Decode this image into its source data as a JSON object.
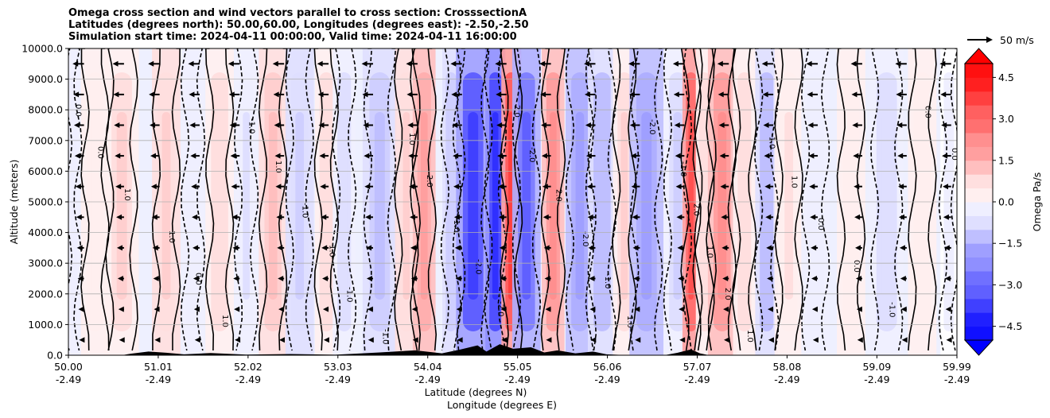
{
  "chart_data": {
    "type": "heatmap",
    "title_lines": [
      "Omega cross section and wind vectors parallel to cross section: CrosssectionA",
      "Latitudes (degrees north): 50.00,60.00, Longitudes (degrees east): -2.50,-2.50",
      "Simulation start time: 2024-04-11 00:00:00, Valid time: 2024-04-11 16:00:00"
    ],
    "ylabel": "Altitude (meters)",
    "xlabel_lines": [
      "Latitude (degrees N)",
      "Longitude (degrees E)"
    ],
    "ylim": [
      0,
      10000
    ],
    "xlim": [
      50.0,
      59.99
    ],
    "y_ticks": [
      "0.0",
      "1000.0",
      "2000.0",
      "3000.0",
      "4000.0",
      "5000.0",
      "6000.0",
      "7000.0",
      "8000.0",
      "9000.0",
      "10000.0"
    ],
    "y_tick_values": [
      0,
      1000,
      2000,
      3000,
      4000,
      5000,
      6000,
      7000,
      8000,
      9000,
      10000
    ],
    "x_ticks_lat": [
      "50.00",
      "51.01",
      "52.02",
      "53.03",
      "54.04",
      "55.05",
      "56.06",
      "57.07",
      "58.08",
      "59.09",
      "59.99"
    ],
    "x_ticks_lon": [
      "-2.49",
      "-2.49",
      "-2.49",
      "-2.49",
      "-2.49",
      "-2.49",
      "-2.49",
      "-2.49",
      "-2.49",
      "-2.49",
      "-2.49"
    ],
    "x_tick_values": [
      50.0,
      51.01,
      52.02,
      53.03,
      54.04,
      55.05,
      56.06,
      57.07,
      58.08,
      59.09,
      59.99
    ],
    "grid": true,
    "colorbar": {
      "label": "Omega Pa/s",
      "ticks": [
        "4.5",
        "3.0",
        "1.5",
        "0.0",
        "−1.5",
        "−3.0",
        "−4.5"
      ],
      "tick_values": [
        4.5,
        3.0,
        1.5,
        0.0,
        -1.5,
        -3.0,
        -4.5
      ],
      "vmin": -5.0,
      "vmax": 5.0,
      "extend": "both",
      "high_color": "#ff0000",
      "zero_color": "#ffffff",
      "low_color": "#0000ff"
    },
    "quiver_key": {
      "label": "50 m/s",
      "speed": 50
    },
    "contour_labels": [
      "0.0",
      "1.0",
      "-1.0",
      "2.0",
      "-2.0"
    ],
    "bands": [
      {
        "x": 50.05,
        "omega": -0.3,
        "half_width": 0.05
      },
      {
        "x": 50.3,
        "omega": 0.4,
        "half_width": 0.1
      },
      {
        "x": 50.6,
        "omega": 0.8,
        "half_width": 0.12
      },
      {
        "x": 51.1,
        "omega": 0.9,
        "half_width": 0.1
      },
      {
        "x": 51.4,
        "omega": -0.4,
        "half_width": 0.08
      },
      {
        "x": 51.7,
        "omega": 0.6,
        "half_width": 0.1
      },
      {
        "x": 52.0,
        "omega": -0.5,
        "half_width": 0.08
      },
      {
        "x": 52.3,
        "omega": 1.2,
        "half_width": 0.1
      },
      {
        "x": 52.6,
        "omega": -0.9,
        "half_width": 0.1
      },
      {
        "x": 52.9,
        "omega": 0.7,
        "half_width": 0.08
      },
      {
        "x": 53.1,
        "omega": -0.6,
        "half_width": 0.08
      },
      {
        "x": 53.5,
        "omega": -1.2,
        "half_width": 0.12
      },
      {
        "x": 53.8,
        "omega": 0.9,
        "half_width": 0.08
      },
      {
        "x": 54.0,
        "omega": 2.0,
        "half_width": 0.08
      },
      {
        "x": 54.3,
        "omega": -1.0,
        "half_width": 0.06
      },
      {
        "x": 54.55,
        "omega": -3.6,
        "half_width": 0.12
      },
      {
        "x": 54.8,
        "omega": -4.2,
        "half_width": 0.07
      },
      {
        "x": 54.98,
        "omega": 3.6,
        "half_width": 0.07
      },
      {
        "x": 55.15,
        "omega": -3.0,
        "half_width": 0.1
      },
      {
        "x": 55.45,
        "omega": 2.2,
        "half_width": 0.08
      },
      {
        "x": 55.75,
        "omega": -2.0,
        "half_width": 0.1
      },
      {
        "x": 56.0,
        "omega": -1.4,
        "half_width": 0.1
      },
      {
        "x": 56.25,
        "omega": 0.8,
        "half_width": 0.08
      },
      {
        "x": 56.5,
        "omega": -2.0,
        "half_width": 0.12
      },
      {
        "x": 56.85,
        "omega": -0.8,
        "half_width": 0.1
      },
      {
        "x": 57.0,
        "omega": 3.4,
        "half_width": 0.06
      },
      {
        "x": 57.15,
        "omega": 0.6,
        "half_width": 0.06
      },
      {
        "x": 57.35,
        "omega": 2.2,
        "half_width": 0.1
      },
      {
        "x": 57.6,
        "omega": 0.7,
        "half_width": 0.08
      },
      {
        "x": 57.85,
        "omega": -1.3,
        "half_width": 0.08
      },
      {
        "x": 58.1,
        "omega": 0.5,
        "half_width": 0.1
      },
      {
        "x": 58.4,
        "omega": -0.4,
        "half_width": 0.1
      },
      {
        "x": 58.8,
        "omega": 0.3,
        "half_width": 0.1
      },
      {
        "x": 59.2,
        "omega": -0.6,
        "half_width": 0.12
      },
      {
        "x": 59.6,
        "omega": 0.4,
        "half_width": 0.1
      },
      {
        "x": 59.9,
        "omega": -0.2,
        "half_width": 0.06
      }
    ],
    "wind_vectors": {
      "u_ms": -11,
      "columns_lat": [
        50.05,
        50.5,
        50.9,
        51.35,
        51.8,
        52.3,
        52.8,
        53.3,
        53.8,
        54.3,
        54.8,
        55.3,
        55.8,
        56.3,
        56.8,
        57.3,
        57.8,
        58.3,
        58.8,
        59.3,
        59.8
      ],
      "levels_m": [
        500,
        1500,
        2500,
        3500,
        4500,
        5500,
        6500,
        7500,
        8500,
        9500
      ]
    },
    "terrain": [
      {
        "x": 50.0,
        "h": 0
      },
      {
        "x": 50.6,
        "h": 0
      },
      {
        "x": 50.7,
        "h": 50
      },
      {
        "x": 50.9,
        "h": 120
      },
      {
        "x": 51.1,
        "h": 80
      },
      {
        "x": 51.3,
        "h": 30
      },
      {
        "x": 51.6,
        "h": 70
      },
      {
        "x": 52.0,
        "h": 20
      },
      {
        "x": 52.5,
        "h": 40
      },
      {
        "x": 53.0,
        "h": 15
      },
      {
        "x": 53.5,
        "h": 90
      },
      {
        "x": 53.9,
        "h": 160
      },
      {
        "x": 54.2,
        "h": 60
      },
      {
        "x": 54.4,
        "h": 180
      },
      {
        "x": 54.6,
        "h": 320
      },
      {
        "x": 54.7,
        "h": 120
      },
      {
        "x": 54.85,
        "h": 360
      },
      {
        "x": 55.0,
        "h": 210
      },
      {
        "x": 55.2,
        "h": 260
      },
      {
        "x": 55.35,
        "h": 90
      },
      {
        "x": 55.5,
        "h": 160
      },
      {
        "x": 55.7,
        "h": 60
      },
      {
        "x": 55.9,
        "h": 120
      },
      {
        "x": 56.05,
        "h": 30
      },
      {
        "x": 56.3,
        "h": 0
      },
      {
        "x": 56.7,
        "h": 0
      },
      {
        "x": 56.85,
        "h": 80
      },
      {
        "x": 57.0,
        "h": 190
      },
      {
        "x": 57.1,
        "h": 60
      },
      {
        "x": 57.2,
        "h": 0
      },
      {
        "x": 59.99,
        "h": 0
      }
    ]
  }
}
